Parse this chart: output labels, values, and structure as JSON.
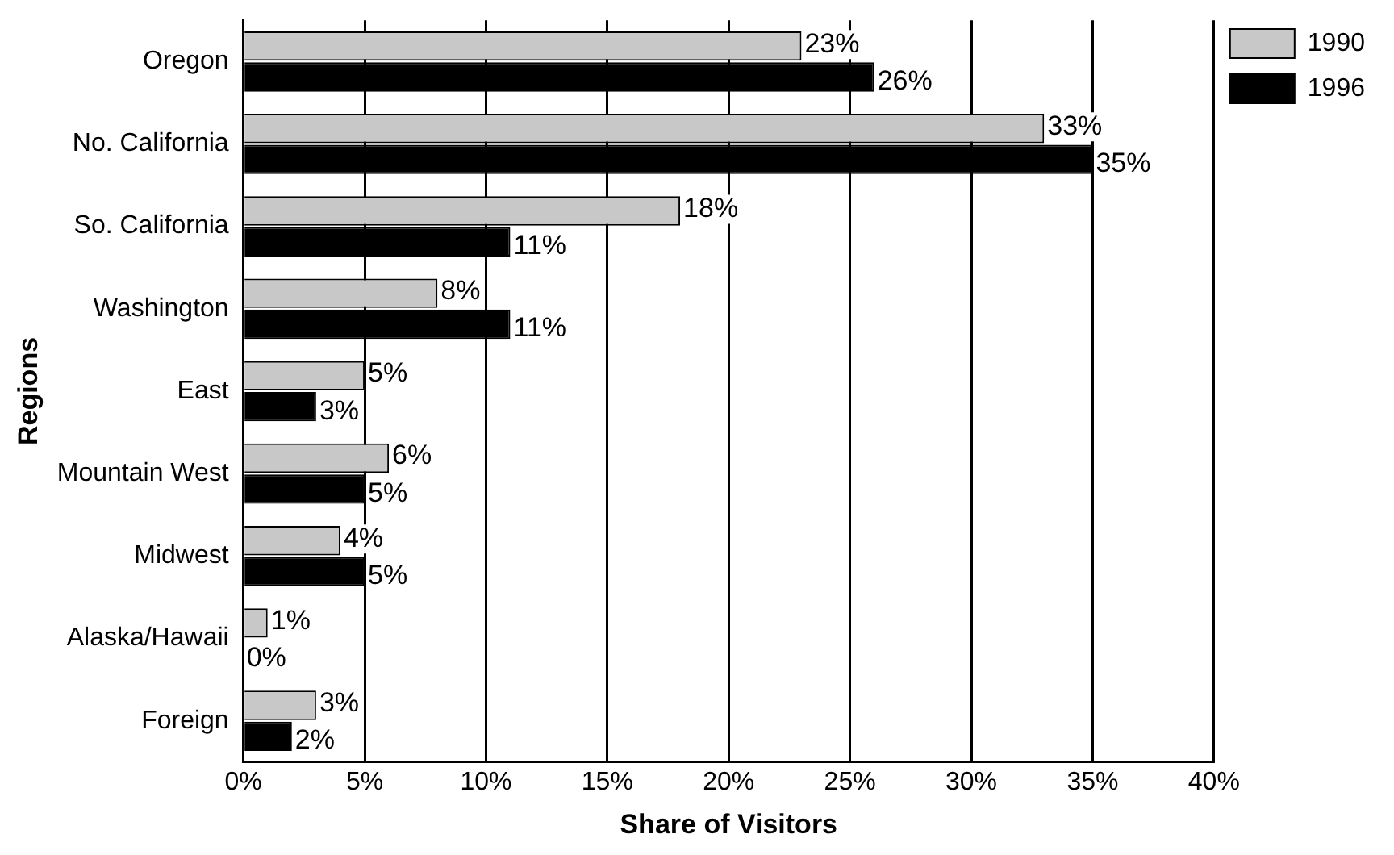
{
  "chart_data": {
    "type": "bar",
    "orientation": "horizontal",
    "xlabel": "Share of Visitors",
    "ylabel": "Regions",
    "categories": [
      "Oregon",
      "No. California",
      "So. California",
      "Washington",
      "East",
      "Mountain West",
      "Midwest",
      "Alaska/Hawaii",
      "Foreign"
    ],
    "series": [
      {
        "name": "1990",
        "color": "#c8c8c8",
        "values": [
          23,
          33,
          18,
          8,
          5,
          6,
          4,
          1,
          3
        ],
        "value_labels": [
          "23%",
          "33%",
          "18%",
          "8%",
          "5%",
          "6%",
          "4%",
          "1%",
          "3%"
        ]
      },
      {
        "name": "1996",
        "color": "#000000",
        "values": [
          26,
          35,
          11,
          11,
          3,
          5,
          5,
          0,
          2
        ],
        "value_labels": [
          "26%",
          "35%",
          "11%",
          "11%",
          "3%",
          "5%",
          "5%",
          "0%",
          "2%"
        ]
      }
    ],
    "xlim": [
      0,
      40
    ],
    "xticks": [
      {
        "value": 0,
        "label": "0%"
      },
      {
        "value": 5,
        "label": "5%"
      },
      {
        "value": 10,
        "label": "10%"
      },
      {
        "value": 15,
        "label": "15%"
      },
      {
        "value": 20,
        "label": "20%"
      },
      {
        "value": 25,
        "label": "25%"
      },
      {
        "value": 30,
        "label": "30%"
      },
      {
        "value": 35,
        "label": "35%"
      },
      {
        "value": 40,
        "label": "40%"
      }
    ],
    "grid": "x",
    "legend": "top right"
  }
}
